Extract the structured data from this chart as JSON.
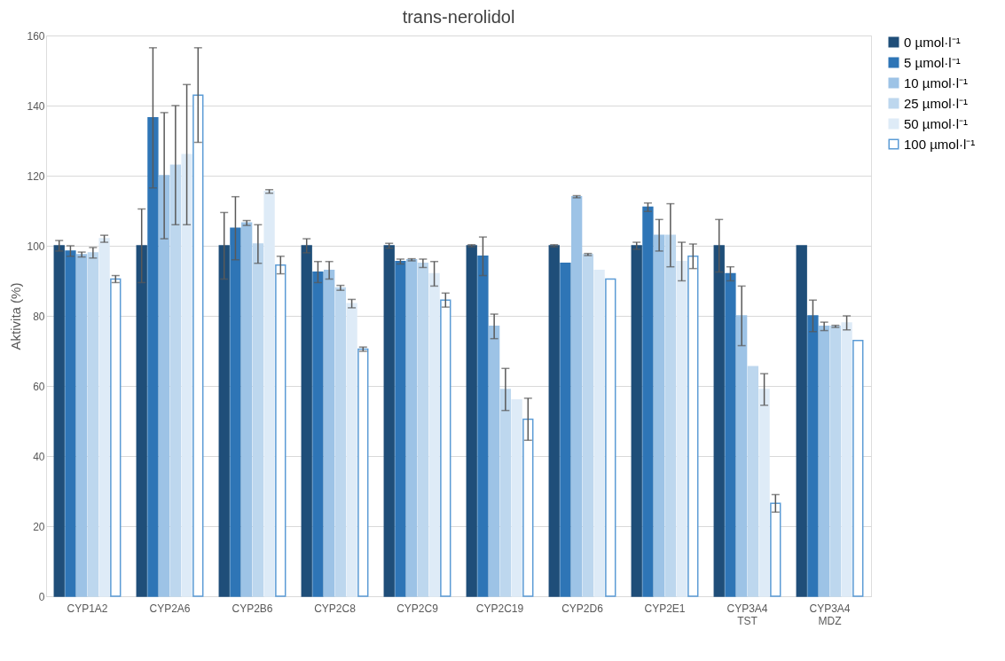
{
  "chart_data": {
    "type": "bar",
    "title": "trans-nerolidol",
    "ylabel": "Aktivita (%)",
    "categories": [
      "CYP1A2",
      "CYP2A6",
      "CYP2B6",
      "CYP2C8",
      "CYP2C9",
      "CYP2C19",
      "CYP2D6",
      "CYP2E1",
      "CYP3A4 TST",
      "CYP3A4 MDZ"
    ],
    "series": [
      {
        "name": "0 µmol·l⁻¹",
        "color": "#1f4e79",
        "values": [
          100,
          100,
          100,
          100,
          100,
          100,
          100,
          100,
          100,
          100
        ],
        "errors": [
          1.5,
          10.5,
          9.5,
          2,
          0.7,
          0.3,
          0.3,
          1,
          7.5,
          null
        ]
      },
      {
        "name": "5 µmol·l⁻¹",
        "color": "#2e75b6",
        "values": [
          98.5,
          136.5,
          105,
          92.5,
          95.5,
          97,
          95,
          111,
          92,
          80
        ],
        "errors": [
          1.5,
          20,
          9,
          3,
          0.7,
          5.5,
          null,
          1.2,
          2,
          4.5
        ]
      },
      {
        "name": "10 µmol·l⁻¹",
        "color": "#9dc3e6",
        "values": [
          97.5,
          120,
          106.5,
          93,
          96,
          77,
          114,
          103,
          80,
          77
        ],
        "errors": [
          0.7,
          18,
          0.7,
          2.5,
          0.3,
          3.5,
          0.3,
          4.5,
          8.5,
          1.2
        ]
      },
      {
        "name": "25 µmol·l⁻¹",
        "color": "#bdd7ee",
        "values": [
          98,
          123,
          100.5,
          88,
          95,
          59,
          97.5,
          103,
          65.5,
          77
        ],
        "errors": [
          1.5,
          17,
          5.5,
          0.7,
          1.2,
          6,
          0.3,
          9,
          null,
          0.3
        ]
      },
      {
        "name": "50 µmol·l⁻¹",
        "color": "#deebf7",
        "values": [
          102,
          126,
          115.5,
          83.5,
          92,
          56,
          93,
          95.5,
          59,
          78
        ],
        "errors": [
          1,
          20,
          0.5,
          1.2,
          3.5,
          null,
          null,
          5.5,
          4.5,
          2
        ]
      },
      {
        "name": "100 µmol·l⁻¹",
        "color": "#ffffff",
        "values": [
          90.5,
          143,
          94.5,
          70.5,
          84.5,
          50.5,
          90.5,
          97,
          26.5,
          73
        ],
        "errors": [
          1,
          13.5,
          2.5,
          0.6,
          2,
          6,
          null,
          3.5,
          2.5,
          null
        ]
      }
    ],
    "ylim": [
      0,
      160
    ],
    "yticks": [
      0,
      20,
      40,
      60,
      80,
      100,
      120,
      140,
      160
    ],
    "grid": "y",
    "legend": "right"
  }
}
